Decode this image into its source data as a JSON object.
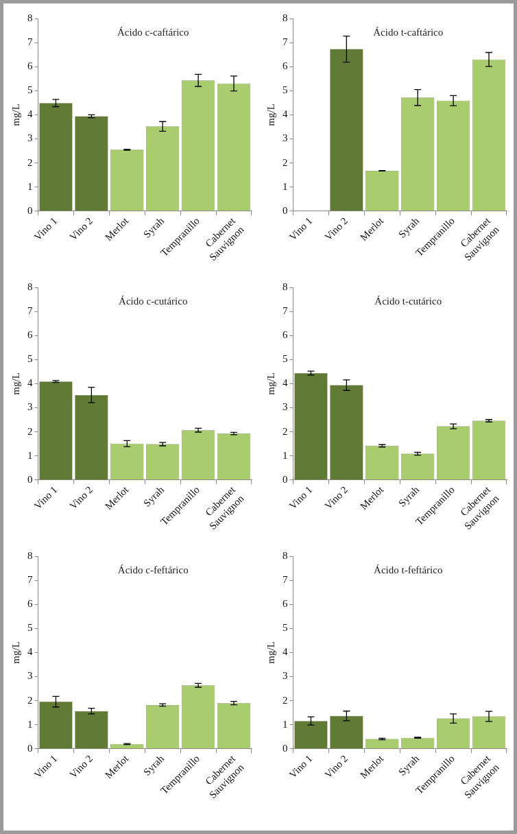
{
  "chart_data": [
    {
      "type": "bar",
      "title": "Ácido c-caftárico",
      "ylabel": "mg/L",
      "categories": [
        "Vino 1",
        "Vino 2",
        "Merlot",
        "Syrah",
        "Tempranillo",
        "Cabernet Sauvignon"
      ],
      "values": [
        4.49,
        3.94,
        2.55,
        3.52,
        5.43,
        5.3
      ],
      "errors": [
        0.15,
        0.06,
        0.02,
        0.2,
        0.25,
        0.31
      ],
      "colors": [
        "#617a35",
        "#617a35",
        "#a9cc6e",
        "#a9cc6e",
        "#a9cc6e",
        "#a9cc6e"
      ],
      "ylim": [
        0,
        8
      ],
      "yticks": [
        0,
        1,
        2,
        3,
        4,
        5,
        6,
        7,
        8
      ],
      "grid": false,
      "legend": false
    },
    {
      "type": "bar",
      "title": "Ácido t-caftárico",
      "ylabel": "mg/L",
      "categories": [
        "Vino 1",
        "Vino 2",
        "Merlot",
        "Syrah",
        "Tempranillo",
        "Cabernet Sauvignon"
      ],
      "values": [
        0,
        6.73,
        1.68,
        4.72,
        4.59,
        6.3
      ],
      "errors": [
        null,
        0.54,
        0.01,
        0.33,
        0.21,
        0.29
      ],
      "colors": [
        "#617a35",
        "#617a35",
        "#a9cc6e",
        "#a9cc6e",
        "#a9cc6e",
        "#a9cc6e"
      ],
      "ylim": [
        0,
        8
      ],
      "yticks": [
        0,
        1,
        2,
        3,
        4,
        5,
        6,
        7,
        8
      ],
      "grid": false,
      "legend": false
    },
    {
      "type": "bar",
      "title": "Ácido c-cutárico",
      "ylabel": "mg/L",
      "categories": [
        "Vino 1",
        "Vino 2",
        "Merlot",
        "Syrah",
        "Tempranillo",
        "Cabernet Sauvignon"
      ],
      "values": [
        4.09,
        3.53,
        1.51,
        1.49,
        2.07,
        1.93
      ],
      "errors": [
        0.04,
        0.32,
        0.13,
        0.07,
        0.08,
        0.05
      ],
      "colors": [
        "#617a35",
        "#617a35",
        "#a9cc6e",
        "#a9cc6e",
        "#a9cc6e",
        "#a9cc6e"
      ],
      "ylim": [
        0,
        8
      ],
      "yticks": [
        0,
        1,
        2,
        3,
        4,
        5,
        6,
        7,
        8
      ],
      "grid": false,
      "legend": false
    },
    {
      "type": "bar",
      "title": "Ácido t-cutárico",
      "ylabel": "mg/L",
      "categories": [
        "Vino 1",
        "Vino 2",
        "Merlot",
        "Syrah",
        "Tempranillo",
        "Cabernet Sauvignon"
      ],
      "values": [
        4.44,
        3.94,
        1.42,
        1.09,
        2.23,
        2.46
      ],
      "errors": [
        0.08,
        0.22,
        0.05,
        0.06,
        0.1,
        0.05
      ],
      "colors": [
        "#617a35",
        "#617a35",
        "#a9cc6e",
        "#a9cc6e",
        "#a9cc6e",
        "#a9cc6e"
      ],
      "ylim": [
        0,
        8
      ],
      "yticks": [
        0,
        1,
        2,
        3,
        4,
        5,
        6,
        7,
        8
      ],
      "grid": false,
      "legend": false
    },
    {
      "type": "bar",
      "title": "Ácido c-feftárico",
      "ylabel": "mg/L",
      "categories": [
        "Vino 1",
        "Vino 2",
        "Merlot",
        "Syrah",
        "Tempranillo",
        "Cabernet Sauvignon"
      ],
      "values": [
        1.96,
        1.57,
        0.2,
        1.82,
        2.64,
        1.9
      ],
      "errors": [
        0.22,
        0.12,
        0.02,
        0.05,
        0.08,
        0.07
      ],
      "colors": [
        "#617a35",
        "#617a35",
        "#a9cc6e",
        "#a9cc6e",
        "#a9cc6e",
        "#a9cc6e"
      ],
      "ylim": [
        0,
        8
      ],
      "yticks": [
        0,
        1,
        2,
        3,
        4,
        5,
        6,
        7,
        8
      ],
      "grid": false,
      "legend": false
    },
    {
      "type": "bar",
      "title": "Ácido t-feftárico",
      "ylabel": "mg/L",
      "categories": [
        "Vino 1",
        "Vino 2",
        "Merlot",
        "Syrah",
        "Tempranillo",
        "Cabernet Sauvignon"
      ],
      "values": [
        1.16,
        1.37,
        0.41,
        0.46,
        1.26,
        1.35
      ],
      "errors": [
        0.17,
        0.2,
        0.03,
        0.02,
        0.19,
        0.21
      ],
      "colors": [
        "#617a35",
        "#617a35",
        "#a9cc6e",
        "#a9cc6e",
        "#a9cc6e",
        "#a9cc6e"
      ],
      "ylim": [
        0,
        8
      ],
      "yticks": [
        0,
        1,
        2,
        3,
        4,
        5,
        6,
        7,
        8
      ],
      "grid": false,
      "legend": false
    }
  ]
}
